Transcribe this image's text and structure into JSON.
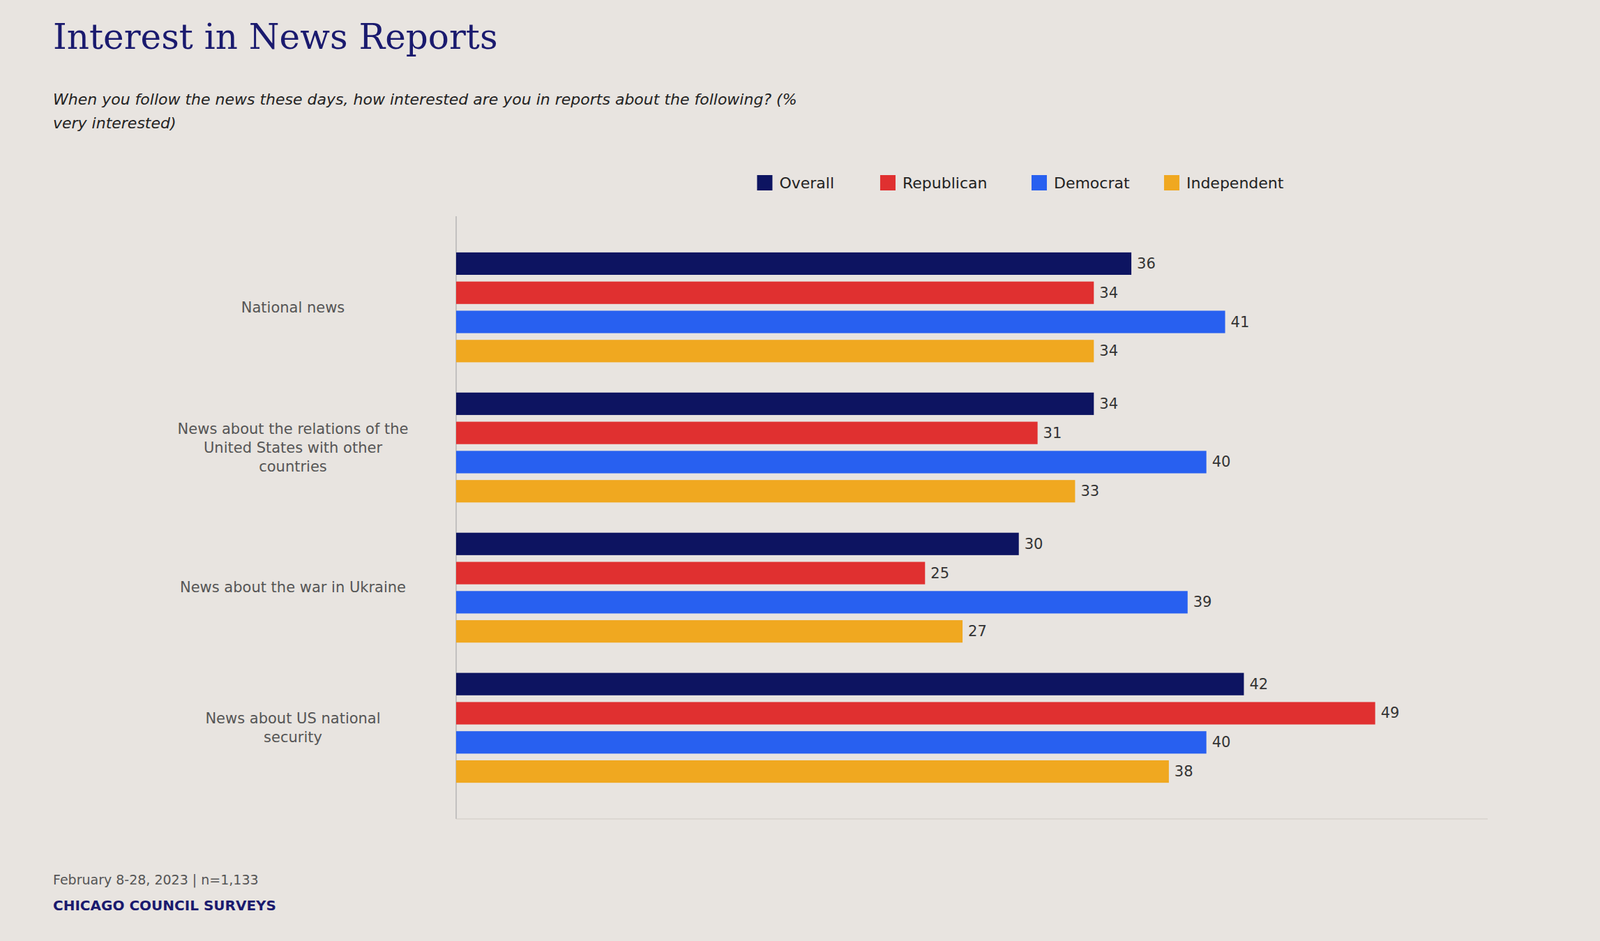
{
  "chart_data": {
    "type": "bar",
    "orientation": "horizontal",
    "title": "Interest in News Reports",
    "subtitle": "When you follow the news these days, how interested are you in reports about the following? (%\nvery interested)",
    "footnote": "February 8-28, 2023 | n=1,133",
    "source": "CHICAGO COUNCIL SURVEYS",
    "categories": [
      "National news",
      "News about the relations of the\nUnited States with other\ncountries",
      "News about the war in Ukraine",
      "News about US national\nsecurity"
    ],
    "series": [
      {
        "name": "Overall",
        "color": "#0d1461",
        "values": [
          36,
          34,
          30,
          42
        ]
      },
      {
        "name": "Republican",
        "color": "#e03030",
        "values": [
          34,
          31,
          25,
          49
        ]
      },
      {
        "name": "Democrat",
        "color": "#2860f0",
        "values": [
          41,
          40,
          39,
          40
        ]
      },
      {
        "name": "Independent",
        "color": "#f0a820",
        "values": [
          34,
          33,
          27,
          38
        ]
      }
    ],
    "xlim": [
      0,
      55
    ],
    "data_labels": true,
    "tick_labels": "y",
    "grid": false,
    "legend": "top"
  }
}
